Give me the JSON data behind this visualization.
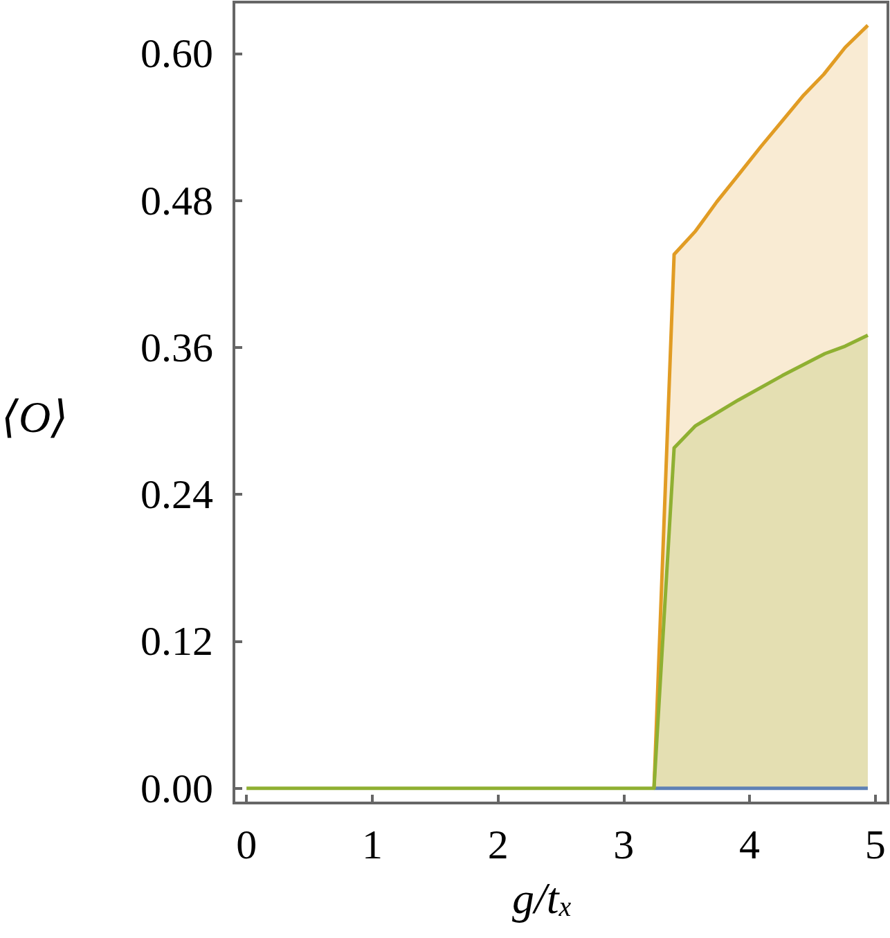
{
  "chart_data": {
    "type": "area",
    "xlabel": "g/t$_{x}$",
    "ylabel": "⟨O⟩",
    "xlim": [
      -0.1,
      5.1
    ],
    "xticks": [
      0,
      1,
      2,
      3,
      4,
      5
    ],
    "ylim": [
      -0.012,
      0.642
    ],
    "yticks": [
      {
        "value": 0,
        "label": "0.00"
      },
      0.12,
      0.24,
      0.36,
      0.48,
      {
        "value": 0.6,
        "label": "0.60"
      }
    ],
    "marker": "none",
    "line_style": "solid",
    "series": [
      {
        "type": "line",
        "color": "#5e81b5",
        "x": [
          3.24,
          4.94
        ],
        "values": [
          0,
          0
        ]
      },
      {
        "color": "#e19c24",
        "x": [
          3.24,
          3.4,
          3.57,
          3.74,
          3.92,
          4.09,
          4.26,
          4.43,
          4.59,
          4.76,
          4.94
        ],
        "values": [
          0,
          0.436,
          0.455,
          0.479,
          0.502,
          0.524,
          0.545,
          0.566,
          0.583,
          0.605,
          0.623
        ]
      },
      {
        "color": "#8fb032",
        "x": [
          0,
          3.24,
          3.4,
          3.57,
          3.91,
          4.26,
          4.6,
          4.76,
          4.94
        ],
        "values": [
          0,
          0,
          0.278,
          0.296,
          0.317,
          0.337,
          0.355,
          0.361,
          0.37
        ]
      }
    ]
  }
}
